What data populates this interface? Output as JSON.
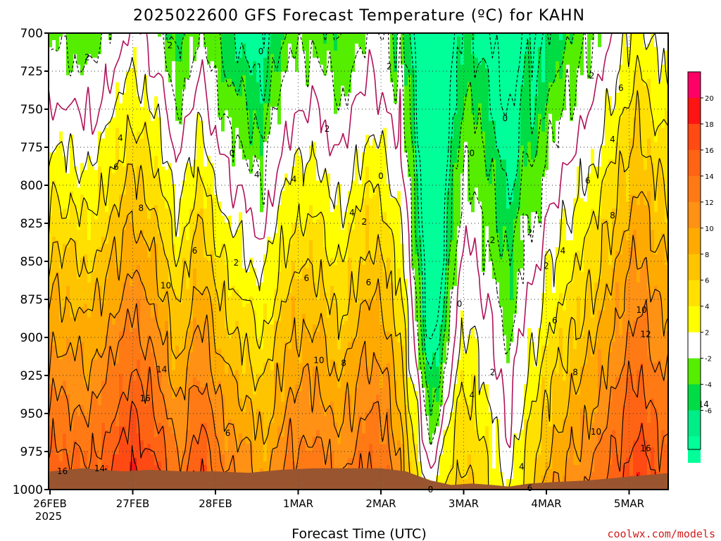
{
  "chart_data": {
    "type": "heatmap",
    "title": "2025022600 GFS Forecast Temperature (ºC) for KAHN",
    "xlabel": "Forecast Time (UTC)",
    "ylabel": "",
    "source": "coolwx.com/models",
    "y_axis": {
      "ticks": [
        700,
        725,
        750,
        775,
        800,
        825,
        850,
        875,
        900,
        925,
        950,
        975,
        1000
      ],
      "ylim": [
        1000,
        700
      ],
      "units": "hPa"
    },
    "x_axis": {
      "ticks": [
        "26FEB",
        "27FEB",
        "28FEB",
        "1MAR",
        "2MAR",
        "3MAR",
        "4MAR",
        "5MAR"
      ],
      "year_label": "2025"
    },
    "grid": true,
    "legend": "right",
    "colorbar": {
      "labels": [
        "20",
        "18",
        "16",
        "14",
        "12",
        "10",
        "8",
        "6",
        "4",
        "2",
        "-2",
        "-4",
        "-6"
      ],
      "colors": {
        "20": "#ff0066",
        "18": "#ff1414",
        "16": "#ff4a14",
        "14": "#ff6414",
        "12": "#ff7a14",
        "10": "#ff9114",
        "8": "#ffaa00",
        "6": "#ffc400",
        "4": "#ffe000",
        "2": "#ffff00",
        "0": "#ffffff",
        "-2": "#55ee00",
        "-4": "#00dd44",
        "-6": "#00ee88",
        "-8": "#00ff99"
      }
    },
    "terrain_color": "#99552f",
    "contour_labels": [
      {
        "text": "2",
        "day": 0.45,
        "p": 716
      },
      {
        "text": "2",
        "day": 1.45,
        "p": 708
      },
      {
        "text": "0",
        "day": 2.55,
        "p": 712
      },
      {
        "text": "2",
        "day": 4.1,
        "p": 722
      },
      {
        "text": "2",
        "day": 6.55,
        "p": 728
      },
      {
        "text": "6",
        "day": 6.9,
        "p": 736
      },
      {
        "text": "4",
        "day": 0.85,
        "p": 769
      },
      {
        "text": "2",
        "day": 3.35,
        "p": 763
      },
      {
        "text": "4",
        "day": 6.8,
        "p": 770
      },
      {
        "text": "0",
        "day": 2.2,
        "p": 779
      },
      {
        "text": "0",
        "day": 5.5,
        "p": 756
      },
      {
        "text": "0",
        "day": 4.0,
        "p": 794
      },
      {
        "text": "0",
        "day": 5.1,
        "p": 779
      },
      {
        "text": "6",
        "day": 0.8,
        "p": 788
      },
      {
        "text": "4",
        "day": 2.5,
        "p": 793
      },
      {
        "text": "4",
        "day": 2.95,
        "p": 796
      },
      {
        "text": "6",
        "day": 6.5,
        "p": 797
      },
      {
        "text": "8",
        "day": 1.1,
        "p": 815
      },
      {
        "text": "4",
        "day": 3.65,
        "p": 818
      },
      {
        "text": "2",
        "day": 3.8,
        "p": 824
      },
      {
        "text": "8",
        "day": 6.8,
        "p": 820
      },
      {
        "text": "2",
        "day": 5.35,
        "p": 836
      },
      {
        "text": "2",
        "day": 5.8,
        "p": 831
      },
      {
        "text": "6",
        "day": 1.75,
        "p": 843
      },
      {
        "text": "2",
        "day": 2.25,
        "p": 851
      },
      {
        "text": "4",
        "day": 6.2,
        "p": 843
      },
      {
        "text": "2",
        "day": 6.0,
        "p": 853
      },
      {
        "text": "10",
        "day": 1.4,
        "p": 866
      },
      {
        "text": "6",
        "day": 3.1,
        "p": 861
      },
      {
        "text": "6",
        "day": 3.85,
        "p": 864
      },
      {
        "text": "0",
        "day": 4.95,
        "p": 878
      },
      {
        "text": "6",
        "day": 6.1,
        "p": 889
      },
      {
        "text": "10",
        "day": 7.15,
        "p": 882
      },
      {
        "text": "12",
        "day": 7.2,
        "p": 898
      },
      {
        "text": "14",
        "day": 1.35,
        "p": 921
      },
      {
        "text": "10",
        "day": 3.25,
        "p": 915
      },
      {
        "text": "8",
        "day": 3.55,
        "p": 917
      },
      {
        "text": "2",
        "day": 5.35,
        "p": 923
      },
      {
        "text": "8",
        "day": 6.35,
        "p": 923
      },
      {
        "text": "16",
        "day": 1.15,
        "p": 940
      },
      {
        "text": "4",
        "day": 5.1,
        "p": 938
      },
      {
        "text": "14",
        "day": 7.9,
        "p": 944
      },
      {
        "text": "6",
        "day": 2.15,
        "p": 963
      },
      {
        "text": "10",
        "day": 6.6,
        "p": 962
      },
      {
        "text": "16",
        "day": 7.2,
        "p": 973
      },
      {
        "text": "14",
        "day": 0.6,
        "p": 986
      },
      {
        "text": "16",
        "day": 0.15,
        "p": 988
      },
      {
        "text": "4",
        "day": 5.7,
        "p": 985
      },
      {
        "text": "6",
        "day": 5.8,
        "p": 999
      },
      {
        "text": "0",
        "day": 4.6,
        "p": 1000
      }
    ]
  }
}
